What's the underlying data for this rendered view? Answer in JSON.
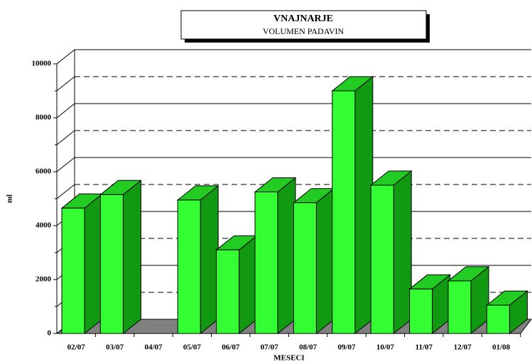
{
  "chart_data": {
    "type": "bar3d",
    "title": "VNAJNARJE",
    "subtitle": "VOLUMEN PADAVIN",
    "y_label": "ml",
    "x_label": "MESECI",
    "categories": [
      "02/07",
      "03/07",
      "04/07",
      "05/07",
      "06/07",
      "07/07",
      "08/07",
      "09/07",
      "10/07",
      "11/07",
      "12/07",
      "01/08"
    ],
    "values": [
      4650,
      5150,
      0,
      4950,
      3100,
      5250,
      4850,
      9000,
      5500,
      1650,
      1950,
      1050
    ],
    "color": "#33ff33",
    "ylim": [
      0,
      10000
    ],
    "yticks": [
      0,
      2000,
      4000,
      6000,
      8000,
      10000
    ],
    "minor_yticks": [
      1000,
      3000,
      5000,
      7000,
      9000
    ],
    "grid": true
  }
}
